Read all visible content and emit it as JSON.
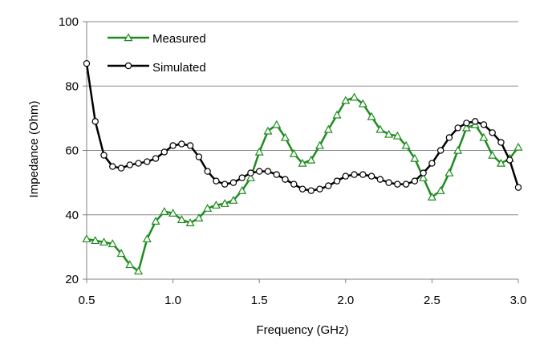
{
  "chart_data": {
    "type": "line",
    "title": "",
    "xlabel": "Frequency (GHz)",
    "ylabel": "Impedance (Ohm)",
    "xlim": [
      0.5,
      3.0
    ],
    "ylim": [
      20,
      100
    ],
    "xticks": [
      "0.5",
      "1.0",
      "1.5",
      "2.0",
      "2.5",
      "3.0"
    ],
    "yticks": [
      "20",
      "40",
      "60",
      "80",
      "100"
    ],
    "grid": "horizontal",
    "legend_position": "top-left",
    "series": [
      {
        "name": "Measured",
        "color": "#1e8c1e",
        "marker": "triangle",
        "x": [
          0.5,
          0.55,
          0.6,
          0.65,
          0.7,
          0.75,
          0.8,
          0.85,
          0.9,
          0.95,
          1.0,
          1.05,
          1.1,
          1.15,
          1.2,
          1.25,
          1.3,
          1.35,
          1.4,
          1.45,
          1.5,
          1.55,
          1.6,
          1.65,
          1.7,
          1.75,
          1.8,
          1.85,
          1.9,
          1.95,
          2.0,
          2.05,
          2.1,
          2.15,
          2.2,
          2.25,
          2.3,
          2.35,
          2.4,
          2.45,
          2.5,
          2.55,
          2.6,
          2.65,
          2.7,
          2.75,
          2.8,
          2.85,
          2.9,
          2.95,
          3.0
        ],
        "values": [
          32.5,
          32,
          31.5,
          31,
          28,
          24.5,
          22.5,
          32.5,
          38,
          41,
          40.5,
          38.5,
          37.5,
          39,
          42,
          43,
          43.5,
          44.5,
          47.5,
          51.5,
          59.5,
          66,
          68,
          64,
          59,
          56,
          57,
          61.5,
          66.5,
          71,
          75.5,
          76.5,
          74.5,
          70.5,
          66.5,
          65,
          64.5,
          61.5,
          57.5,
          51.5,
          45.5,
          47.5,
          53,
          60,
          67,
          68,
          64,
          58.5,
          56,
          57.5,
          61
        ]
      },
      {
        "name": "Simulated",
        "color": "#000000",
        "marker": "circle",
        "x": [
          0.5,
          0.55,
          0.6,
          0.65,
          0.7,
          0.75,
          0.8,
          0.85,
          0.9,
          0.95,
          1.0,
          1.05,
          1.1,
          1.15,
          1.2,
          1.25,
          1.3,
          1.35,
          1.4,
          1.45,
          1.5,
          1.55,
          1.6,
          1.65,
          1.7,
          1.75,
          1.8,
          1.85,
          1.9,
          1.95,
          2.0,
          2.05,
          2.1,
          2.15,
          2.2,
          2.25,
          2.3,
          2.35,
          2.4,
          2.45,
          2.5,
          2.55,
          2.6,
          2.65,
          2.7,
          2.75,
          2.8,
          2.85,
          2.9,
          2.95,
          3.0
        ],
        "values": [
          87,
          69,
          58.5,
          55,
          54.5,
          55.5,
          56,
          56.5,
          57.5,
          59.5,
          61.5,
          62,
          61.5,
          58,
          53.5,
          50.5,
          49.5,
          50,
          51.5,
          53,
          53.5,
          53.5,
          52.5,
          51,
          49.5,
          48,
          47.5,
          48,
          49,
          50.5,
          52,
          52.5,
          52.5,
          52,
          51,
          50,
          49.5,
          49.5,
          50.5,
          53,
          56,
          60,
          64,
          67,
          68.5,
          69,
          68,
          65.5,
          62.5,
          57,
          48.5
        ]
      }
    ]
  }
}
